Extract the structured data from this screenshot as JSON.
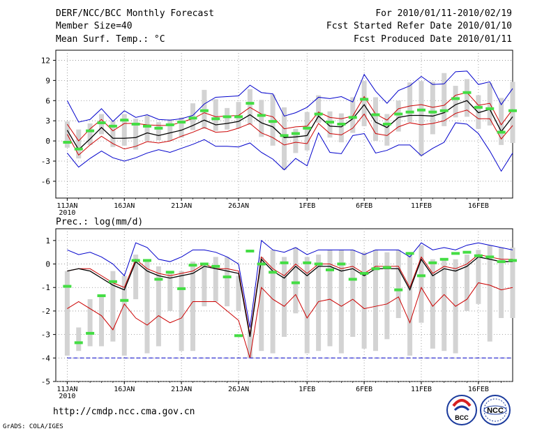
{
  "header": {
    "title": "DERF/NCC/BCC Monthly Forecast",
    "member_size": "Member Size=40",
    "variable": "Mean Surf. Temp.: °C",
    "period": "For 2010/01/11-2010/02/19",
    "started": "Fcst Started Refer Date 2010/01/10",
    "produced": "Fcst Produced Date 2010/01/11"
  },
  "footer": {
    "url": "http://cmdp.ncc.cma.gov.cn",
    "credit": "GrADS: COLA/IGES",
    "logo_left": "BCC",
    "logo_right": "NCC"
  },
  "colors": {
    "bar": "#d3d3d3",
    "envelope": "#0000cc",
    "spread": "#cc0000",
    "mean": "#000000",
    "observed": "#44dd44"
  },
  "chart_data": [
    {
      "type": "line",
      "title": "Mean Surf. Temp.: °C",
      "ylim": [
        -8.5,
        13.5
      ],
      "yticks": [
        -6,
        -3,
        0,
        3,
        6,
        9,
        12
      ],
      "ytick_labels": [
        "-6",
        "-3",
        "0",
        "3",
        "6",
        "9",
        "12"
      ],
      "x_day_range": [
        10,
        50
      ],
      "xticks": [
        {
          "day": 11,
          "label": "11JAN",
          "sublabel": "2010"
        },
        {
          "day": 16,
          "label": "16JAN"
        },
        {
          "day": 21,
          "label": "21JAN"
        },
        {
          "day": 26,
          "label": "26JAN"
        },
        {
          "day": 32,
          "label": "1FEB"
        },
        {
          "day": 37,
          "label": "6FEB"
        },
        {
          "day": 42,
          "label": "11FEB"
        },
        {
          "day": 47,
          "label": "16FEB"
        }
      ],
      "days": [
        11,
        12,
        13,
        14,
        15,
        16,
        17,
        18,
        19,
        20,
        21,
        22,
        23,
        24,
        25,
        26,
        27,
        28,
        29,
        30,
        31,
        32,
        33,
        34,
        35,
        36,
        37,
        38,
        39,
        40,
        41,
        42,
        43,
        44,
        45,
        46,
        47,
        48,
        49,
        50
      ],
      "series": [
        {
          "name": "ensemble max",
          "role": "envelope_upper",
          "values": [
            6.0,
            2.8,
            3.2,
            4.8,
            2.9,
            4.5,
            3.5,
            3.9,
            3.2,
            3.1,
            3.3,
            3.8,
            5.5,
            6.5,
            6.6,
            6.7,
            8.3,
            7.2,
            7.0,
            3.7,
            4.2,
            5.0,
            6.5,
            6.3,
            6.6,
            5.8,
            9.9,
            7.4,
            5.6,
            7.5,
            8.2,
            9.6,
            8.4,
            8.5,
            10.3,
            10.4,
            8.4,
            8.8,
            5.4,
            7.8
          ]
        },
        {
          "name": "upper spread",
          "role": "spread",
          "values": [
            2.5,
            0.0,
            1.8,
            3.2,
            1.5,
            2.6,
            2.6,
            2.4,
            2.3,
            2.3,
            2.8,
            3.3,
            4.2,
            3.6,
            3.7,
            3.8,
            5.0,
            4.0,
            3.6,
            1.8,
            2.1,
            2.2,
            4.3,
            3.5,
            3.3,
            3.7,
            6.6,
            4.0,
            3.1,
            4.8,
            5.2,
            5.4,
            5.0,
            5.3,
            6.8,
            7.2,
            5.3,
            5.6,
            2.4,
            4.7
          ]
        },
        {
          "name": "ensemble mean",
          "role": "mean",
          "values": [
            1.6,
            -1.3,
            0.3,
            2.0,
            0.4,
            0.4,
            0.5,
            1.2,
            0.8,
            1.2,
            1.6,
            2.3,
            3.1,
            2.4,
            2.6,
            2.9,
            3.9,
            2.7,
            2.1,
            0.5,
            0.6,
            0.8,
            3.7,
            2.2,
            2.1,
            3.3,
            5.4,
            2.8,
            2.0,
            3.5,
            3.8,
            3.8,
            3.7,
            4.2,
            5.4,
            6.0,
            4.2,
            4.7,
            1.4,
            3.6
          ]
        },
        {
          "name": "lower spread",
          "role": "spread",
          "values": [
            1.0,
            -2.1,
            -0.6,
            0.7,
            -0.4,
            -1.2,
            -0.8,
            -0.1,
            -0.3,
            0.0,
            0.7,
            1.3,
            2.0,
            1.3,
            1.4,
            1.9,
            2.6,
            1.2,
            0.5,
            -0.6,
            -0.2,
            -0.4,
            2.6,
            1.1,
            0.9,
            1.9,
            4.0,
            1.1,
            0.8,
            2.1,
            2.7,
            2.4,
            2.6,
            3.0,
            4.1,
            4.6,
            3.3,
            3.3,
            0.3,
            2.3
          ]
        },
        {
          "name": "ensemble min",
          "role": "envelope_lower",
          "values": [
            -1.8,
            -3.9,
            -2.6,
            -1.5,
            -2.5,
            -3.0,
            -2.5,
            -1.8,
            -1.3,
            -1.7,
            -1.1,
            -0.5,
            0.2,
            -0.8,
            -0.8,
            -0.9,
            -0.3,
            -1.7,
            -2.7,
            -4.3,
            -2.6,
            -3.7,
            1.2,
            -1.7,
            -1.9,
            0.8,
            1.1,
            -1.8,
            -1.4,
            -0.6,
            -0.6,
            -2.2,
            -1.1,
            -0.2,
            2.7,
            2.5,
            1.1,
            -1.5,
            -4.5,
            -1.8
          ]
        }
      ],
      "bars": {
        "name": "ensemble distribution",
        "low": [
          -1.0,
          -2.6,
          -0.6,
          1.0,
          -0.9,
          -0.7,
          -1.3,
          0.0,
          0.1,
          0.0,
          0.5,
          1.6,
          1.8,
          1.5,
          1.7,
          1.9,
          2.4,
          0.6,
          -0.7,
          -4.3,
          -1.8,
          -1.4,
          2.7,
          0.5,
          -0.2,
          1.2,
          2.2,
          0.0,
          -0.7,
          1.4,
          2.8,
          -2.2,
          1.0,
          2.2,
          3.5,
          3.6,
          1.8,
          2.3,
          -0.6,
          -0.3
        ],
        "high": [
          2.9,
          1.7,
          2.6,
          4.0,
          3.0,
          4.0,
          3.3,
          3.8,
          2.8,
          3.2,
          3.5,
          5.6,
          7.6,
          6.2,
          4.9,
          5.8,
          7.7,
          6.1,
          6.9,
          5.0,
          1.8,
          4.3,
          6.8,
          4.4,
          4.1,
          6.5,
          8.9,
          6.5,
          4.0,
          6.0,
          8.7,
          8.9,
          8.8,
          10.1,
          8.2,
          9.2,
          6.8,
          8.6,
          6.4,
          8.8
        ]
      },
      "observed": [
        -0.2,
        -1.2,
        1.5,
        2.7,
        2.2,
        3.1,
        2.5,
        2.2,
        1.9,
        2.4,
        2.8,
        3.4,
        4.5,
        3.3,
        3.6,
        3.6,
        5.6,
        3.8,
        2.9,
        0.8,
        1.1,
        1.9,
        4.0,
        2.8,
        2.5,
        3.5,
        6.2,
        3.9,
        2.5,
        4.0,
        4.3,
        4.6,
        4.3,
        4.5,
        6.3,
        7.2,
        5.0,
        4.8,
        1.3,
        4.5
      ]
    },
    {
      "type": "line",
      "title": "Prec.: log(mm/d)",
      "ylim": [
        -5,
        1.5
      ],
      "yticks": [
        -5,
        -4,
        -3,
        -2,
        -1,
        0,
        1
      ],
      "ytick_labels": [
        "-5",
        "-4",
        "-3",
        "-2",
        "-1",
        "0",
        "1"
      ],
      "x_day_range": [
        10,
        50
      ],
      "xticks": [
        {
          "day": 11,
          "label": "11JAN",
          "sublabel": "2010"
        },
        {
          "day": 16,
          "label": "16JAN"
        },
        {
          "day": 21,
          "label": "21JAN"
        },
        {
          "day": 26,
          "label": "26JAN"
        },
        {
          "day": 32,
          "label": "1FEB"
        },
        {
          "day": 37,
          "label": "6FEB"
        },
        {
          "day": 42,
          "label": "11FEB"
        },
        {
          "day": 47,
          "label": "16FEB"
        }
      ],
      "days": [
        11,
        12,
        13,
        14,
        15,
        16,
        17,
        18,
        19,
        20,
        21,
        22,
        23,
        24,
        25,
        26,
        27,
        28,
        29,
        30,
        31,
        32,
        33,
        34,
        35,
        36,
        37,
        38,
        39,
        40,
        41,
        42,
        43,
        44,
        45,
        46,
        47,
        48,
        49,
        50
      ],
      "series": [
        {
          "name": "ensemble max",
          "role": "envelope_upper",
          "values": [
            0.6,
            0.4,
            0.5,
            0.3,
            0.0,
            -0.5,
            0.9,
            0.7,
            0.2,
            0.1,
            0.3,
            0.6,
            0.6,
            0.5,
            0.3,
            0.0,
            -2.7,
            1.0,
            0.6,
            0.5,
            0.7,
            0.4,
            0.6,
            0.6,
            0.6,
            0.6,
            0.4,
            0.6,
            0.6,
            0.6,
            0.3,
            0.9,
            0.6,
            0.7,
            0.6,
            0.8,
            0.9,
            0.8,
            0.7,
            0.6
          ]
        },
        {
          "name": "upper spread",
          "role": "spread",
          "values": [
            -0.3,
            -0.2,
            -0.2,
            -0.5,
            -0.8,
            -1.0,
            0.2,
            -0.2,
            -0.4,
            -0.5,
            -0.4,
            -0.3,
            0.0,
            -0.2,
            -0.2,
            -0.3,
            -3.0,
            0.3,
            -0.2,
            -0.5,
            0.0,
            -0.4,
            0.0,
            0.0,
            -0.2,
            -0.1,
            -0.4,
            -0.1,
            -0.1,
            -0.1,
            -1.0,
            0.3,
            -0.4,
            -0.1,
            -0.2,
            0.0,
            0.4,
            0.3,
            0.2,
            0.2
          ]
        },
        {
          "name": "ensemble mean",
          "role": "mean",
          "values": [
            -0.3,
            -0.2,
            -0.3,
            -0.6,
            -0.9,
            -1.1,
            0.1,
            -0.3,
            -0.5,
            -0.6,
            -0.5,
            -0.4,
            -0.1,
            -0.2,
            -0.3,
            -0.4,
            -3.1,
            0.2,
            -0.3,
            -0.6,
            -0.1,
            -0.5,
            -0.1,
            -0.1,
            -0.3,
            -0.2,
            -0.5,
            -0.2,
            -0.2,
            -0.2,
            -1.1,
            0.2,
            -0.5,
            -0.2,
            -0.3,
            -0.1,
            0.3,
            0.2,
            0.1,
            0.1
          ]
        },
        {
          "name": "lower spread",
          "role": "spread",
          "values": [
            -1.9,
            -1.6,
            -1.9,
            -2.2,
            -2.8,
            -1.7,
            -2.3,
            -2.6,
            -2.2,
            -2.5,
            -2.3,
            -1.6,
            -1.6,
            -1.6,
            -2.0,
            -2.4,
            -4.0,
            -1.0,
            -1.5,
            -1.8,
            -1.3,
            -2.3,
            -1.6,
            -1.5,
            -1.8,
            -1.5,
            -1.9,
            -1.8,
            -1.7,
            -1.4,
            -2.5,
            -1.0,
            -1.8,
            -1.3,
            -1.8,
            -1.5,
            -0.8,
            -0.9,
            -1.1,
            -1.0
          ]
        },
        {
          "name": "ensemble min",
          "role": "envelope_lower",
          "values": [
            -4.0,
            -4.0,
            -4.0,
            -4.0,
            -4.0,
            -4.0,
            -4.0,
            -4.0,
            -4.0,
            -4.0,
            -4.0,
            -4.0,
            -4.0,
            -4.0,
            -4.0,
            -4.0,
            -4.0,
            -4.0,
            -4.0,
            -4.0,
            -4.0,
            -4.0,
            -4.0,
            -4.0,
            -4.0,
            -4.0,
            -4.0,
            -4.0,
            -4.0,
            -4.0,
            -4.0,
            -4.0,
            -4.0,
            -4.0,
            -4.0,
            -4.0,
            -4.0,
            -4.0,
            -4.0,
            -4.0
          ]
        }
      ],
      "bars": {
        "name": "ensemble distribution",
        "low": [
          -3.9,
          -3.7,
          -3.5,
          -3.5,
          -3.3,
          -3.9,
          -1.5,
          -3.8,
          -3.5,
          -2.0,
          -3.7,
          -3.7,
          -1.8,
          -1.6,
          -1.8,
          -2.0,
          -4.0,
          -3.7,
          -3.8,
          -3.1,
          -2.1,
          -3.8,
          -3.7,
          -3.5,
          -3.8,
          -3.1,
          -3.6,
          -3.7,
          -3.2,
          -2.3,
          -3.9,
          -2.5,
          -3.6,
          -3.7,
          -3.8,
          -2.0,
          -1.7,
          -3.3,
          -2.3,
          -2.3
        ],
        "high": [
          -0.3,
          -2.7,
          -1.5,
          -1.3,
          -0.3,
          -0.5,
          0.4,
          0.1,
          -0.1,
          -0.3,
          -0.3,
          0.1,
          0.0,
          0.3,
          0.3,
          -0.5,
          -2.8,
          0.3,
          0.6,
          0.3,
          0.7,
          0.3,
          0.4,
          0.6,
          0.6,
          0.6,
          0.5,
          0.6,
          0.5,
          0.6,
          0.5,
          0.8,
          0.2,
          0.2,
          0.2,
          0.4,
          0.6,
          0.8,
          0.7,
          0.7
        ]
      },
      "observed": [
        -0.95,
        -3.35,
        -2.95,
        -1.35,
        -0.75,
        -1.55,
        0.15,
        0.15,
        -0.65,
        -0.35,
        -1.05,
        -0.05,
        0.0,
        -0.1,
        -0.55,
        -3.05,
        0.55,
        0.0,
        -0.35,
        0.05,
        -0.8,
        0.05,
        0.0,
        -0.25,
        0.0,
        -0.65,
        -0.4,
        -0.2,
        -0.15,
        -1.1,
        0.45,
        -0.5,
        0.05,
        0.2,
        0.45,
        0.5,
        0.35,
        0.3,
        0.1,
        0.15
      ]
    }
  ]
}
